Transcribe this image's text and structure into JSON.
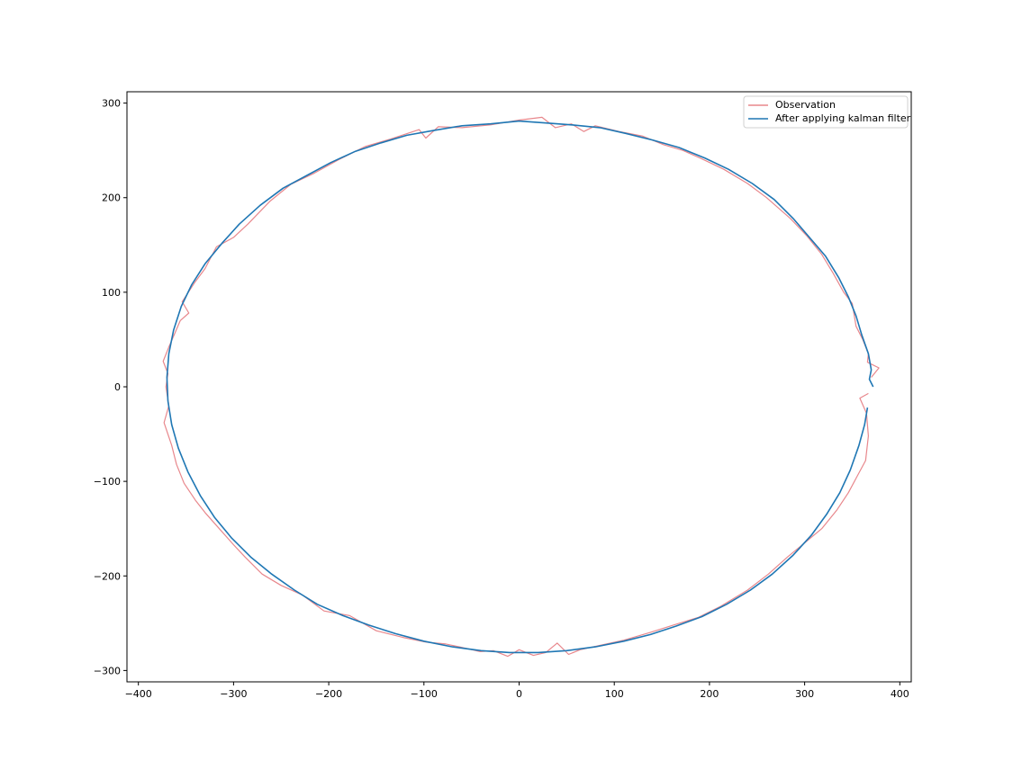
{
  "chart_data": {
    "type": "line",
    "title": "",
    "xlabel": "",
    "ylabel": "",
    "xlim": [
      -412,
      412
    ],
    "ylim": [
      -312,
      312
    ],
    "xticks": [
      -400,
      -300,
      -200,
      -100,
      0,
      100,
      200,
      300,
      400
    ],
    "yticks": [
      -300,
      -200,
      -100,
      0,
      100,
      200,
      300
    ],
    "xtick_labels": [
      "−400",
      "−300",
      "−200",
      "−100",
      "0",
      "100",
      "200",
      "300",
      "400"
    ],
    "ytick_labels": [
      "−300",
      "−200",
      "−100",
      "0",
      "100",
      "200",
      "300"
    ],
    "grid": false,
    "legend_position": "top-right",
    "colors": {
      "observation": "#e8878c",
      "filtered": "#1f77b4"
    },
    "series": [
      {
        "name": "Observation",
        "points": [
          [
            367,
            -7
          ],
          [
            358,
            -12
          ],
          [
            365,
            -28
          ],
          [
            367,
            -52
          ],
          [
            364,
            -78
          ],
          [
            355,
            -95
          ],
          [
            346,
            -112
          ],
          [
            334,
            -130
          ],
          [
            318,
            -150
          ],
          [
            300,
            -165
          ],
          [
            282,
            -180
          ],
          [
            262,
            -198
          ],
          [
            240,
            -215
          ],
          [
            212,
            -232
          ],
          [
            188,
            -244
          ],
          [
            162,
            -252
          ],
          [
            137,
            -260
          ],
          [
            110,
            -268
          ],
          [
            87,
            -273
          ],
          [
            64,
            -278
          ],
          [
            52,
            -283
          ],
          [
            40,
            -271
          ],
          [
            28,
            -281
          ],
          [
            15,
            -284
          ],
          [
            0,
            -278
          ],
          [
            -12,
            -285
          ],
          [
            -27,
            -279
          ],
          [
            -41,
            -280
          ],
          [
            -58,
            -276
          ],
          [
            -77,
            -272
          ],
          [
            -98,
            -270
          ],
          [
            -122,
            -265
          ],
          [
            -150,
            -258
          ],
          [
            -178,
            -242
          ],
          [
            -205,
            -237
          ],
          [
            -228,
            -220
          ],
          [
            -250,
            -210
          ],
          [
            -270,
            -198
          ],
          [
            -288,
            -180
          ],
          [
            -300,
            -167
          ],
          [
            -315,
            -150
          ],
          [
            -330,
            -133
          ],
          [
            -340,
            -120
          ],
          [
            -352,
            -102
          ],
          [
            -360,
            -82
          ],
          [
            -365,
            -62
          ],
          [
            -373,
            -38
          ],
          [
            -368,
            -20
          ],
          [
            -371,
            0
          ],
          [
            -369,
            14
          ],
          [
            -374,
            27
          ],
          [
            -368,
            42
          ],
          [
            -362,
            56
          ],
          [
            -356,
            70
          ],
          [
            -347,
            78
          ],
          [
            -354,
            90
          ],
          [
            -341,
            110
          ],
          [
            -330,
            125
          ],
          [
            -318,
            148
          ],
          [
            -300,
            158
          ],
          [
            -285,
            172
          ],
          [
            -262,
            196
          ],
          [
            -240,
            214
          ],
          [
            -215,
            226
          ],
          [
            -190,
            240
          ],
          [
            -162,
            254
          ],
          [
            -135,
            262
          ],
          [
            -105,
            272
          ],
          [
            -98,
            263
          ],
          [
            -85,
            275
          ],
          [
            -60,
            274
          ],
          [
            -30,
            277
          ],
          [
            0,
            282
          ],
          [
            24,
            285
          ],
          [
            38,
            274
          ],
          [
            55,
            278
          ],
          [
            68,
            270
          ],
          [
            80,
            276
          ],
          [
            105,
            270
          ],
          [
            130,
            265
          ],
          [
            152,
            256
          ],
          [
            172,
            250
          ],
          [
            190,
            242
          ],
          [
            215,
            230
          ],
          [
            240,
            215
          ],
          [
            260,
            200
          ],
          [
            285,
            178
          ],
          [
            302,
            160
          ],
          [
            318,
            140
          ],
          [
            330,
            120
          ],
          [
            341,
            100
          ],
          [
            350,
            88
          ],
          [
            354,
            64
          ],
          [
            361,
            50
          ],
          [
            367,
            35
          ],
          [
            366,
            26
          ],
          [
            378,
            20
          ],
          [
            370,
            10
          ]
        ]
      },
      {
        "name": "After applying kalman filter",
        "points": [
          [
            372,
            0
          ],
          [
            368,
            8
          ],
          [
            370,
            18
          ],
          [
            367,
            35
          ],
          [
            360,
            55
          ],
          [
            354,
            75
          ],
          [
            346,
            95
          ],
          [
            336,
            115
          ],
          [
            322,
            138
          ],
          [
            305,
            158
          ],
          [
            288,
            178
          ],
          [
            268,
            198
          ],
          [
            245,
            215
          ],
          [
            220,
            230
          ],
          [
            195,
            242
          ],
          [
            168,
            253
          ],
          [
            140,
            261
          ],
          [
            112,
            268
          ],
          [
            85,
            274
          ],
          [
            55,
            277
          ],
          [
            28,
            279
          ],
          [
            0,
            281
          ],
          [
            -30,
            278
          ],
          [
            -60,
            276
          ],
          [
            -90,
            271
          ],
          [
            -118,
            266
          ],
          [
            -145,
            258
          ],
          [
            -172,
            249
          ],
          [
            -198,
            237
          ],
          [
            -222,
            224
          ],
          [
            -248,
            210
          ],
          [
            -272,
            192
          ],
          [
            -294,
            172
          ],
          [
            -312,
            152
          ],
          [
            -330,
            130
          ],
          [
            -344,
            108
          ],
          [
            -355,
            85
          ],
          [
            -363,
            60
          ],
          [
            -368,
            35
          ],
          [
            -370,
            10
          ],
          [
            -369,
            -15
          ],
          [
            -365,
            -40
          ],
          [
            -358,
            -65
          ],
          [
            -348,
            -90
          ],
          [
            -335,
            -115
          ],
          [
            -320,
            -138
          ],
          [
            -302,
            -160
          ],
          [
            -282,
            -180
          ],
          [
            -260,
            -198
          ],
          [
            -236,
            -215
          ],
          [
            -212,
            -230
          ],
          [
            -185,
            -242
          ],
          [
            -158,
            -252
          ],
          [
            -130,
            -261
          ],
          [
            -100,
            -269
          ],
          [
            -70,
            -275
          ],
          [
            -40,
            -279
          ],
          [
            -10,
            -281
          ],
          [
            20,
            -281
          ],
          [
            50,
            -279
          ],
          [
            80,
            -275
          ],
          [
            110,
            -269
          ],
          [
            138,
            -262
          ],
          [
            165,
            -253
          ],
          [
            192,
            -243
          ],
          [
            218,
            -230
          ],
          [
            243,
            -215
          ],
          [
            266,
            -198
          ],
          [
            288,
            -178
          ],
          [
            307,
            -157
          ],
          [
            323,
            -135
          ],
          [
            337,
            -112
          ],
          [
            348,
            -88
          ],
          [
            357,
            -62
          ],
          [
            363,
            -40
          ],
          [
            366,
            -22
          ]
        ]
      }
    ]
  }
}
